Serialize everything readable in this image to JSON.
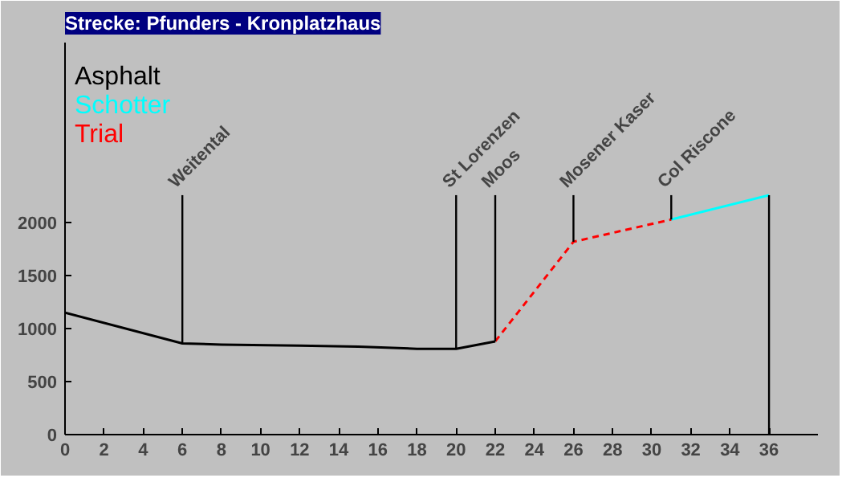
{
  "chart_data": {
    "type": "line",
    "title": "Strecke: Pfunders - Kronplatzhaus",
    "series": [
      {
        "name": "Asphalt",
        "color": "#000000",
        "line_style": "solid",
        "x": [
          0,
          6,
          8,
          12,
          15,
          18,
          20,
          22
        ],
        "values": [
          1150,
          860,
          850,
          840,
          830,
          810,
          810,
          880
        ]
      },
      {
        "name": "Schotter",
        "color": "#00ffff",
        "line_style": "solid",
        "x": [
          31,
          36
        ],
        "values": [
          2030,
          2260
        ]
      },
      {
        "name": "Trial",
        "color": "#ff0000",
        "line_style": "dashed",
        "x": [
          22,
          26,
          31
        ],
        "values": [
          880,
          1820,
          2030
        ]
      }
    ],
    "annotations": [
      {
        "text": "Weitental",
        "x": 6,
        "y": 860
      },
      {
        "text": "St Lorenzen",
        "x": 20,
        "y": 810
      },
      {
        "text": "Moos",
        "x": 22,
        "y": 880
      },
      {
        "text": "Mosener Kaser",
        "x": 26,
        "y": 1820
      },
      {
        "text": "Col Riscone",
        "x": 31,
        "y": 2030
      }
    ],
    "ref_lines": [
      {
        "axis": "x",
        "value": 36,
        "label": null
      }
    ],
    "xlim": [
      0,
      38.5
    ],
    "xticks": [
      0,
      2,
      4,
      6,
      8,
      10,
      12,
      14,
      16,
      18,
      20,
      22,
      24,
      26,
      28,
      30,
      32,
      34,
      36
    ],
    "ylim": [
      0,
      3700
    ],
    "yticks": [
      0,
      500,
      1000,
      1500,
      2000
    ],
    "grid": false,
    "legend": "top left",
    "marker": "none"
  }
}
